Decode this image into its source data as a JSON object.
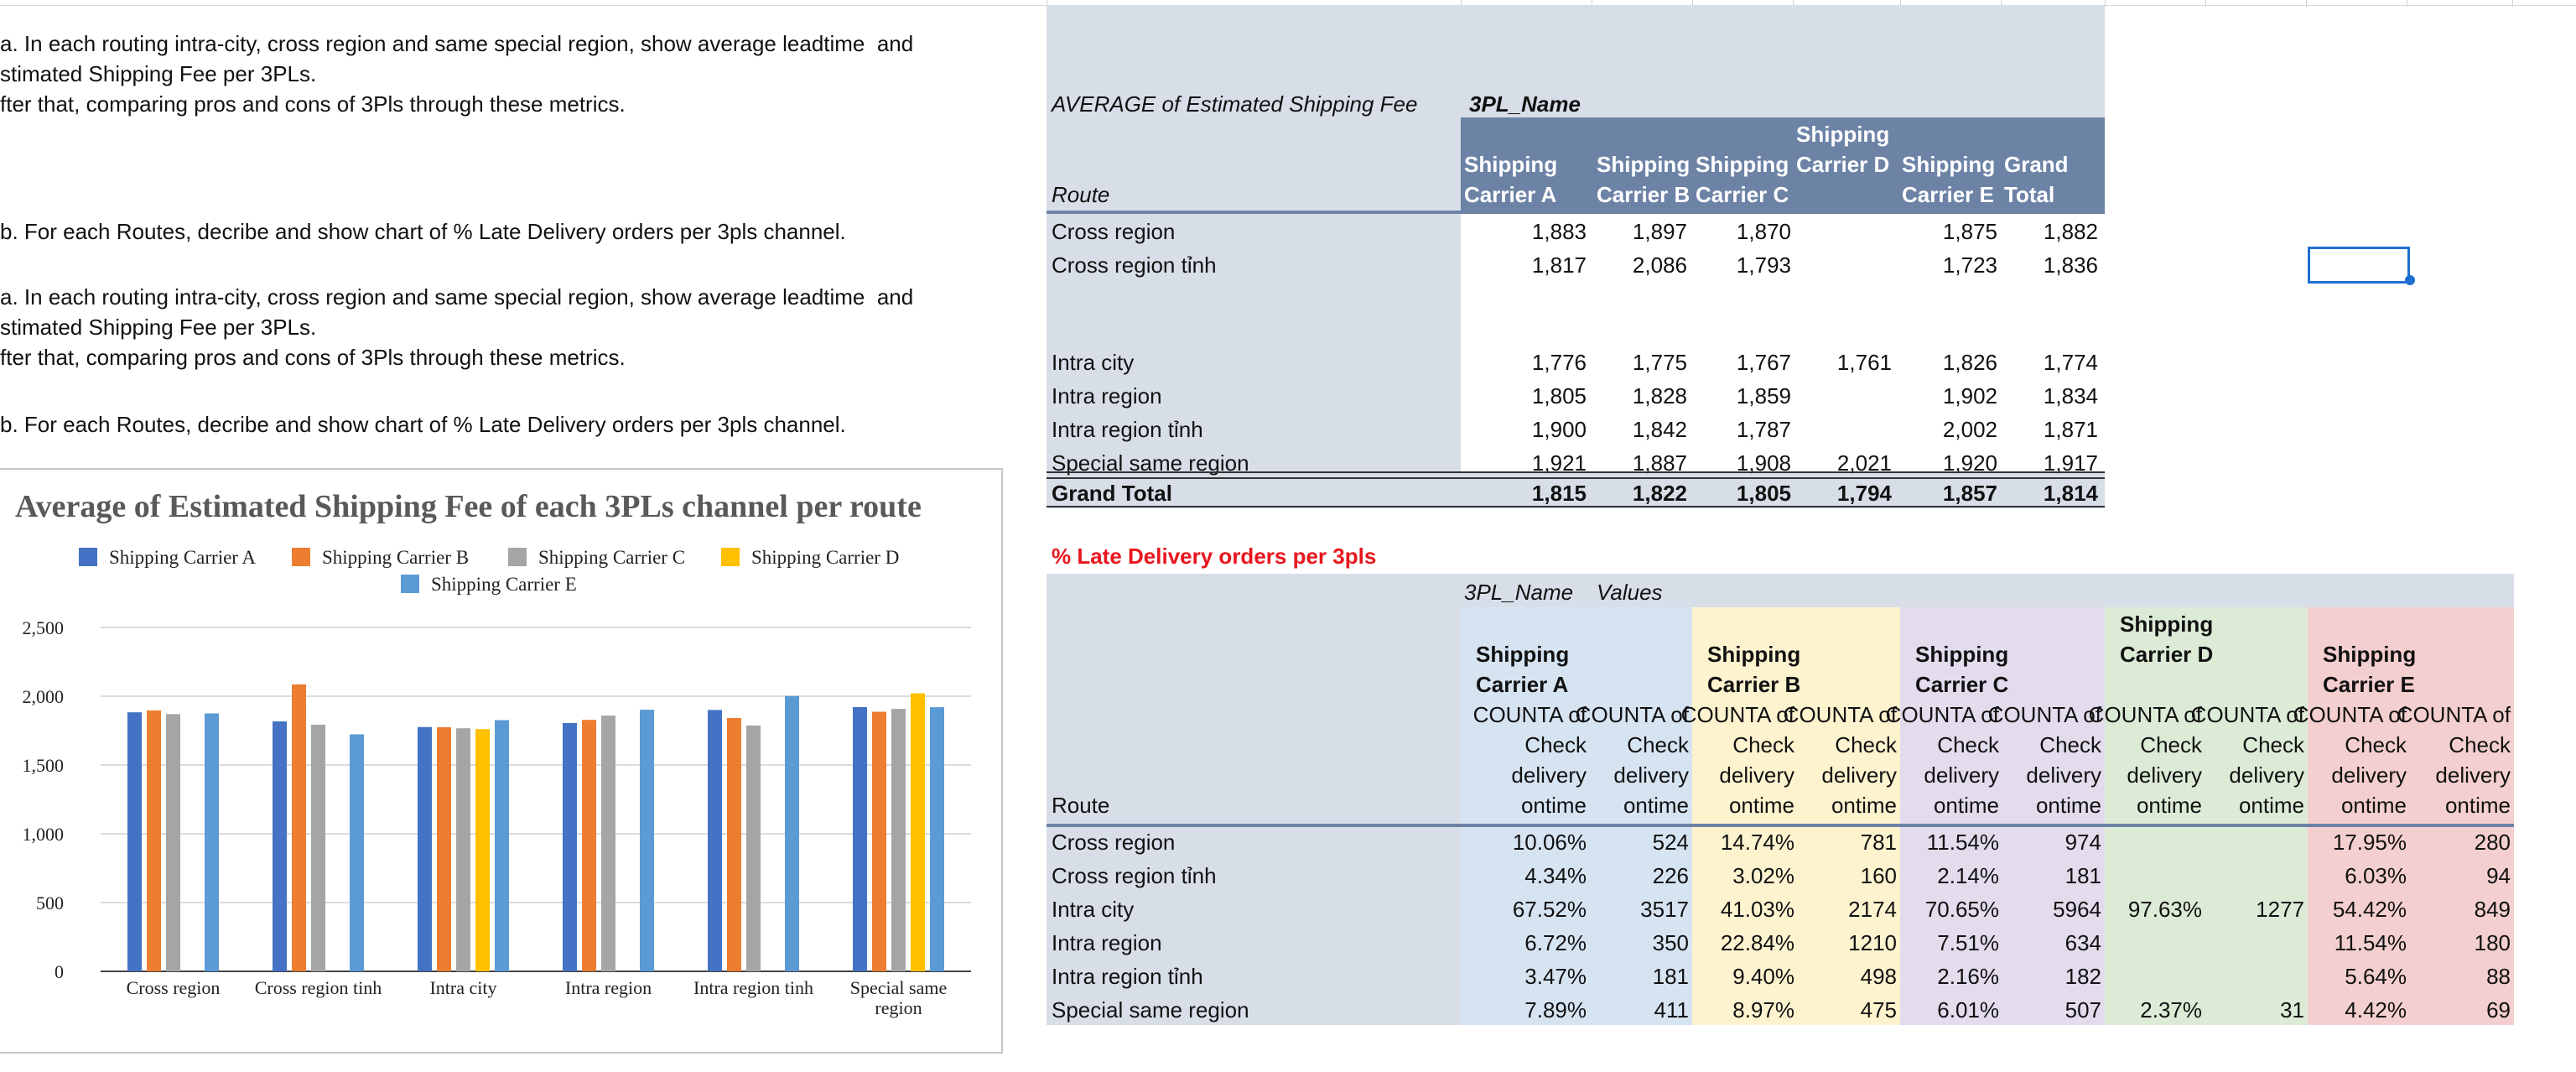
{
  "notes": [
    "a. In each routing intra-city, cross region and same special region, show average leadtime  and",
    "stimated Shipping Fee per 3PLs.",
    "fter that, comparing pros and cons of 3Pls through these metrics.",
    "b. For each Routes, decribe and show chart of % Late Delivery orders per 3pls channel.",
    "a. In each routing intra-city, cross region and same special region, show average leadtime  and",
    "stimated Shipping Fee per 3PLs.",
    "fter that, comparing pros and cons of 3Pls through these metrics.",
    "b. For each Routes, decribe and show chart of % Late Delivery orders per 3pls channel."
  ],
  "pivot1": {
    "title": "AVERAGE of Estimated Shipping Fee",
    "col_field": "3PL_Name",
    "row_field": "Route",
    "columns": [
      "Shipping Carrier A",
      "Shipping Carrier B",
      "Shipping Carrier C",
      "Shipping Carrier D",
      "Shipping Carrier E",
      "Grand Total"
    ],
    "rows": [
      {
        "route": "Cross region",
        "values": [
          "1,883",
          "1,897",
          "1,870",
          "",
          "1,875",
          "1,882"
        ]
      },
      {
        "route": "Cross region tỉnh",
        "values": [
          "1,817",
          "2,086",
          "1,793",
          "",
          "1,723",
          "1,836"
        ]
      },
      {
        "route": "Intra city",
        "values": [
          "1,776",
          "1,775",
          "1,767",
          "1,761",
          "1,826",
          "1,774"
        ]
      },
      {
        "route": "Intra region",
        "values": [
          "1,805",
          "1,828",
          "1,859",
          "",
          "1,902",
          "1,834"
        ]
      },
      {
        "route": "Intra region tỉnh",
        "values": [
          "1,900",
          "1,842",
          "1,787",
          "",
          "2,002",
          "1,871"
        ]
      },
      {
        "route": "Special same region",
        "values": [
          "1,921",
          "1,887",
          "1,908",
          "2,021",
          "1,920",
          "1,917"
        ]
      }
    ],
    "total": {
      "route": "Grand Total",
      "values": [
        "1,815",
        "1,822",
        "1,805",
        "1,794",
        "1,857",
        "1,814"
      ]
    }
  },
  "pivot2": {
    "title": "% Late Delivery orders per 3pls",
    "col_field": "3PL_Name",
    "values_field": "Values",
    "row_field": "Route",
    "carriers": [
      "Shipping Carrier A",
      "Shipping Carrier B",
      "Shipping Carrier C",
      "Shipping Carrier D",
      "Shipping Carrier E"
    ],
    "carrier_colors": [
      "#d6e4f2",
      "#fdf3cf",
      "#e2dced",
      "#dcebd6",
      "#f4cfcf"
    ],
    "measure_label": "COUNTA of Check delivery ontime",
    "rows": [
      {
        "route": "Cross region",
        "values": [
          "10.06%",
          "524",
          "14.74%",
          "781",
          "11.54%",
          "974",
          "",
          "",
          "17.95%",
          "280"
        ]
      },
      {
        "route": "Cross region tỉnh",
        "values": [
          "4.34%",
          "226",
          "3.02%",
          "160",
          "2.14%",
          "181",
          "",
          "",
          "6.03%",
          "94"
        ]
      },
      {
        "route": "Intra city",
        "values": [
          "67.52%",
          "3517",
          "41.03%",
          "2174",
          "70.65%",
          "5964",
          "97.63%",
          "1277",
          "54.42%",
          "849"
        ]
      },
      {
        "route": "Intra region",
        "values": [
          "6.72%",
          "350",
          "22.84%",
          "1210",
          "7.51%",
          "634",
          "",
          "",
          "11.54%",
          "180"
        ]
      },
      {
        "route": "Intra region tỉnh",
        "values": [
          "3.47%",
          "181",
          "9.40%",
          "498",
          "2.16%",
          "182",
          "",
          "",
          "5.64%",
          "88"
        ]
      },
      {
        "route": "Special same region",
        "values": [
          "7.89%",
          "411",
          "8.97%",
          "475",
          "6.01%",
          "507",
          "2.37%",
          "31",
          "4.42%",
          "69"
        ]
      }
    ]
  },
  "chart_data": {
    "type": "bar",
    "title": "Average of Estimated Shipping Fee of each 3PLs channel per route",
    "categories": [
      "Cross region",
      "Cross region tinh",
      "Intra city",
      "Intra region",
      "Intra region tinh",
      "Special same region"
    ],
    "series": [
      {
        "name": "Shipping Carrier A",
        "color": "#4472c4",
        "values": [
          1883,
          1817,
          1776,
          1805,
          1900,
          1921
        ]
      },
      {
        "name": "Shipping Carrier B",
        "color": "#ed7d31",
        "values": [
          1897,
          2086,
          1775,
          1828,
          1842,
          1887
        ]
      },
      {
        "name": "Shipping Carrier C",
        "color": "#a5a5a5",
        "values": [
          1870,
          1793,
          1767,
          1859,
          1787,
          1908
        ]
      },
      {
        "name": "Shipping Carrier D",
        "color": "#ffc000",
        "values": [
          null,
          null,
          1761,
          null,
          null,
          2021
        ]
      },
      {
        "name": "Shipping Carrier E",
        "color": "#5b9bd5",
        "values": [
          1875,
          1723,
          1826,
          1902,
          2002,
          1920
        ]
      }
    ],
    "y_ticks": [
      "0",
      "500",
      "1,000",
      "1,500",
      "2,000",
      "2,500"
    ],
    "ylim": [
      0,
      2500
    ],
    "grid": true,
    "legend": "top"
  }
}
